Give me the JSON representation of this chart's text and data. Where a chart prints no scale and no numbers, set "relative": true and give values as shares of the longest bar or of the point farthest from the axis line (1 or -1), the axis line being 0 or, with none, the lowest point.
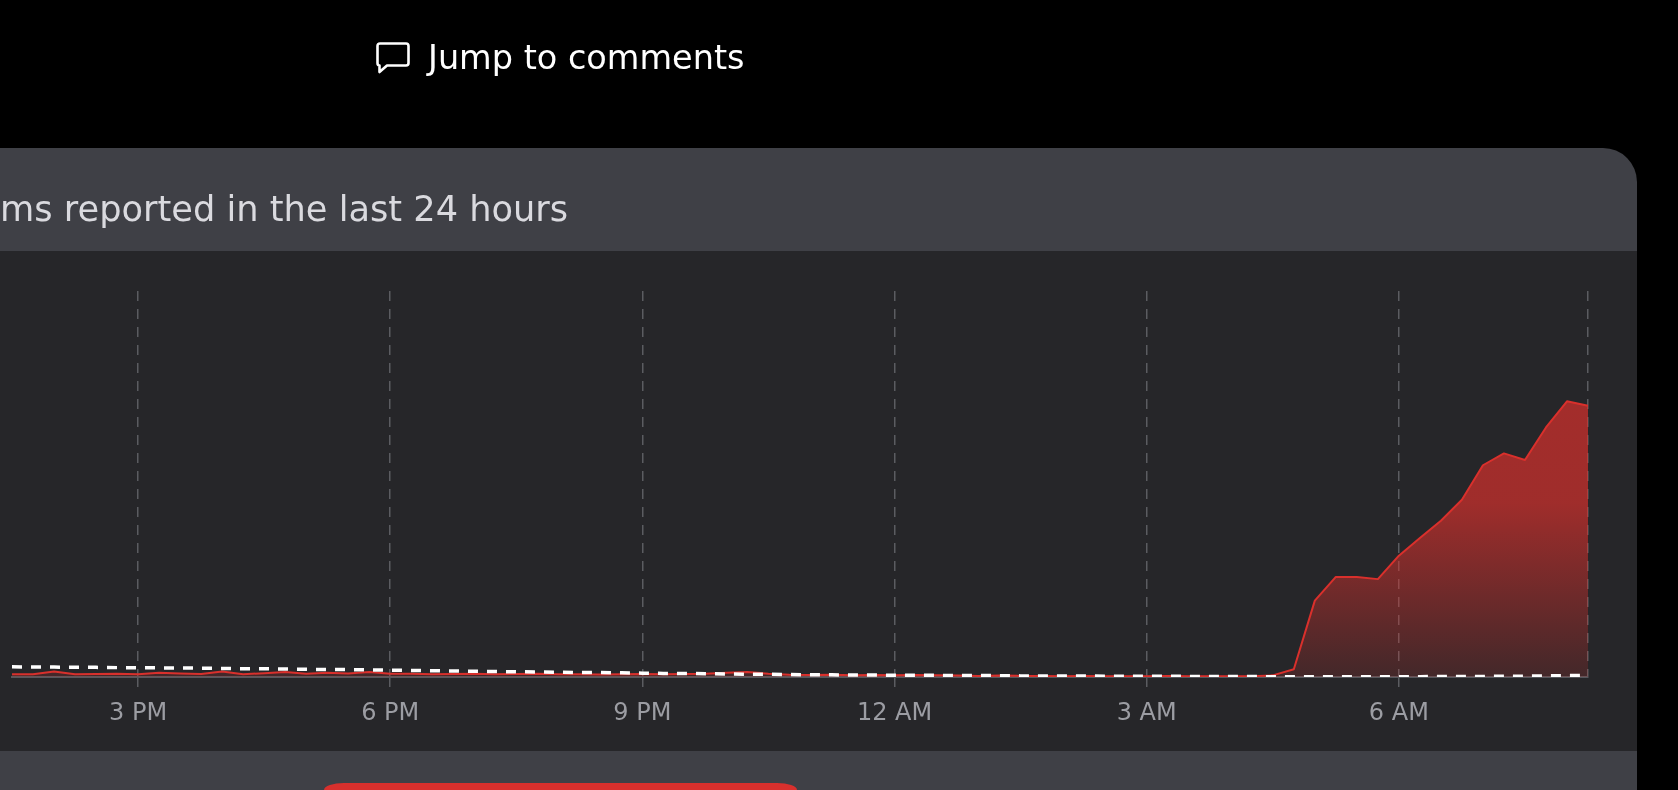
{
  "chart_data": {
    "type": "area",
    "title": "ms reported in the last 24 hours",
    "annotations": [
      "Jump to comments"
    ],
    "relative": true,
    "grid": "x",
    "categories": [
      null,
      null,
      null,
      null,
      null,
      null,
      "3 PM",
      null,
      null,
      null,
      null,
      null,
      null,
      null,
      null,
      null,
      null,
      null,
      "6 PM",
      null,
      null,
      null,
      null,
      null,
      null,
      null,
      null,
      null,
      null,
      null,
      "9 PM",
      null,
      null,
      null,
      null,
      null,
      null,
      null,
      null,
      null,
      null,
      null,
      "12 AM",
      null,
      null,
      null,
      null,
      null,
      null,
      null,
      null,
      null,
      null,
      null,
      "3 AM",
      null,
      null,
      null,
      null,
      null,
      null,
      null,
      null,
      null,
      null,
      null,
      "6 AM",
      null,
      null,
      null,
      null,
      null,
      null,
      null,
      null,
      null
    ],
    "series": [
      {
        "color": "#d9302c",
        "values": [
          0.01,
          0.01,
          0.02,
          0.01,
          0.011,
          0.012,
          0.01,
          0.015,
          0.013,
          0.011,
          0.02,
          0.01,
          0.014,
          0.018,
          0.012,
          0.015,
          0.013,
          0.018,
          0.012,
          0.012,
          0.01,
          0.011,
          0.012,
          0.01,
          0.011,
          0.012,
          0.01,
          0.01,
          0.009,
          0.01,
          0.011,
          0.01,
          0.011,
          0.012,
          0.015,
          0.018,
          0.012,
          0.008,
          0.007,
          0.008,
          0.006,
          0.007,
          0.006,
          0.007,
          0.006,
          0.005,
          0.004,
          0.005,
          0.004,
          0.004,
          0.003,
          0.004,
          0.003,
          0.003,
          0.003,
          0.004,
          0.003,
          0.003,
          0.003,
          0.003,
          0.006,
          0.028,
          0.277,
          0.363,
          0.363,
          0.355,
          0.44,
          0.504,
          0.567,
          0.643,
          0.768,
          0.811,
          0.787,
          0.905,
          1,
          0.984
        ]
      },
      {
        "type": "line",
        "color": "#ffffff",
        "line_style": "dashed",
        "values": [
          0.037,
          0.036,
          0.036,
          0.035,
          0.035,
          0.034,
          0.034,
          0.033,
          0.033,
          0.032,
          0.031,
          0.03,
          0.03,
          0.029,
          0.028,
          0.027,
          0.027,
          0.026,
          0.025,
          0.024,
          0.023,
          0.022,
          0.021,
          0.02,
          0.019,
          0.018,
          0.017,
          0.016,
          0.016,
          0.015,
          0.014,
          0.013,
          0.013,
          0.012,
          0.011,
          0.01,
          0.01,
          0.009,
          0.008,
          0.008,
          0.007,
          0.007,
          0.006,
          0.006,
          0.006,
          0.005,
          0.005,
          0.005,
          0.004,
          0.004,
          0.004,
          0.004,
          0.003,
          0.003,
          0.003,
          0.003,
          0.002,
          0.002,
          0.002,
          0.002,
          0.001,
          0.001,
          0.001,
          0.001,
          0.001,
          0.001,
          0.001,
          0.001,
          0.002,
          0.002,
          0.002,
          0.003,
          0.003,
          0.004,
          0.005,
          0.006
        ]
      }
    ]
  }
}
